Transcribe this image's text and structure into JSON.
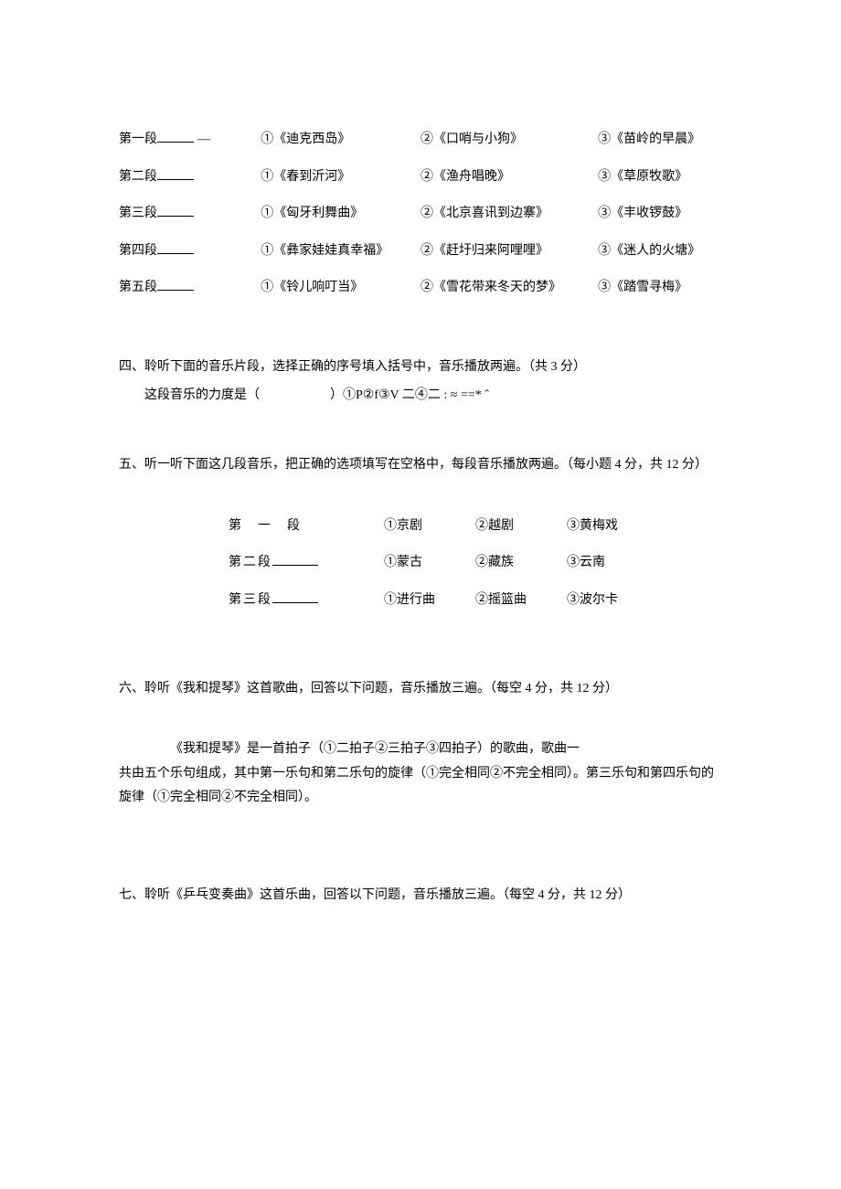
{
  "q3": {
    "rows": [
      {
        "seg_label": "第一段",
        "show_dash": true,
        "opt1": "①《迪克西岛》",
        "opt2": "②《口哨与小狗》",
        "opt3": "③《苗岭的早晨》"
      },
      {
        "seg_label": "第二段",
        "show_dash": false,
        "opt1": "①《春到沂河》",
        "opt2": "②《渔舟唱晚》",
        "opt3": "③《草原牧歌》"
      },
      {
        "seg_label": "第三段",
        "show_dash": false,
        "opt1": "①《匈牙利舞曲》",
        "opt2": "②《北京喜讯到边寨》",
        "opt3": "③《丰收锣鼓》"
      },
      {
        "seg_label": "第四段",
        "show_dash": false,
        "opt1": "①《彝家娃娃真幸福》",
        "opt2": "②《赶圩归来阿哩哩》",
        "opt3": "③《迷人的火塘》"
      },
      {
        "seg_label": "第五段",
        "show_dash": false,
        "opt1": "①《铃儿响叮当》",
        "opt2": "②《雪花带来冬天的梦》",
        "opt3": "③《踏雪寻梅》"
      }
    ]
  },
  "q4": {
    "heading": "四、聆听下面的音乐片段，选择正确的序号填入括号中，音乐播放两遍。（共 3 分）",
    "body_pre": "这段音乐的力度是（",
    "body_post": "）①P②f③V 二④二 : ≈ ==* ˆ"
  },
  "q5": {
    "heading": "五、听一听下面这几段音乐，把正确的选项填写在空格中，每段音乐播放两遍。（每小题 4 分，共 12 分）",
    "rows": [
      {
        "seg_label_spaced": true,
        "seg_label": "第一段",
        "blank": false,
        "opt1": "①京剧",
        "opt2": "②越剧",
        "opt3": "③黄梅戏"
      },
      {
        "seg_label_spaced": false,
        "seg_label": "第二段 ",
        "blank": true,
        "opt1": "①蒙古",
        "opt2": "②藏族",
        "opt3": "③云南"
      },
      {
        "seg_label_spaced": false,
        "seg_label": "第三段 ",
        "blank": true,
        "opt1": "①进行曲",
        "opt2": "②摇篮曲",
        "opt3": "③波尔卡"
      }
    ]
  },
  "q6": {
    "heading": "六、聆听《我和提琴》这首歌曲，回答以下问题，音乐播放三遍。（每空 4 分，共 12 分）",
    "line1": "《我和提琴》是一首拍子（①二拍子②三拍子③四拍子）的歌曲，歌曲一",
    "line2": "共由五个乐句组成，其中第一乐句和第二乐句的旋律（①完全相同②不完全相同）。第三乐句和第四乐句的旋律（①完全相同②不完全相同）。"
  },
  "q7": {
    "heading": "七、聆听《乒乓变奏曲》这首乐曲，回答以下问题，音乐播放三遍。（每空 4 分，共 12 分）"
  }
}
